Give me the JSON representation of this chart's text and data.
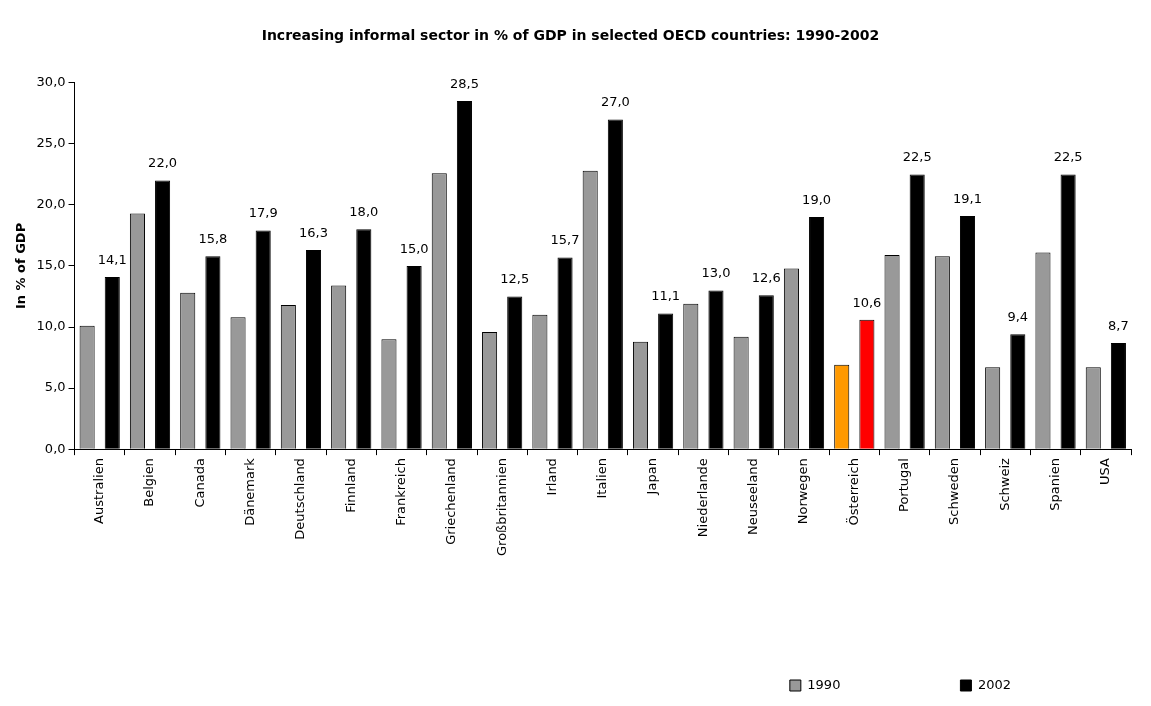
{
  "chart_data": {
    "type": "bar",
    "title": "Increasing informal sector in % of GDP in selected OECD countries: 1990-2002",
    "ylabel": "In % of GDP",
    "categories": [
      "Australien",
      "Belgien",
      "Canada",
      "Dänemark",
      "Deutschland",
      "Finnland",
      "Frankreich",
      "Griechenland",
      "Großbritannien",
      "Irland",
      "Italien",
      "Japan",
      "Niederlande",
      "Neuseeland",
      "Norwegen",
      "Österreich",
      "Portugal",
      "Schweden",
      "Schweiz",
      "Spanien",
      "USA"
    ],
    "series": [
      {
        "name": "1990",
        "color": "#999999",
        "colors": [
          "#999999",
          "#999999",
          "#999999",
          "#999999",
          "#999999",
          "#999999",
          "#999999",
          "#999999",
          "#999999",
          "#999999",
          "#999999",
          "#999999",
          "#999999",
          "#999999",
          "#999999",
          "#ff9900",
          "#999999",
          "#999999",
          "#999999",
          "#999999",
          "#999999"
        ],
        "values": [
          10.1,
          19.3,
          12.8,
          10.8,
          11.8,
          13.4,
          9.0,
          22.6,
          9.6,
          11.0,
          22.8,
          8.8,
          11.9,
          9.2,
          14.8,
          6.9,
          15.9,
          15.8,
          6.7,
          16.1,
          6.7
        ]
      },
      {
        "name": "2002",
        "color": "#000000",
        "colors": [
          "#000000",
          "#000000",
          "#000000",
          "#000000",
          "#000000",
          "#000000",
          "#000000",
          "#000000",
          "#000000",
          "#000000",
          "#000000",
          "#000000",
          "#000000",
          "#000000",
          "#000000",
          "#ff0000",
          "#000000",
          "#000000",
          "#000000",
          "#000000",
          "#000000"
        ],
        "values": [
          14.1,
          22.0,
          15.8,
          17.9,
          16.3,
          18.0,
          15.0,
          28.5,
          12.5,
          15.7,
          27.0,
          11.1,
          13.0,
          12.6,
          19.0,
          10.6,
          22.5,
          19.1,
          9.4,
          22.5,
          8.7
        ],
        "value_labels": [
          "14,1",
          "22,0",
          "15,8",
          "17,9",
          "16,3",
          "18,0",
          "15,0",
          "28,5",
          "12,5",
          "15,7",
          "27,0",
          "11,1",
          "13,0",
          "12,6",
          "19,0",
          "10,6",
          "22,5",
          "19,1",
          "9,4",
          "22,5",
          "8,7"
        ]
      }
    ],
    "ylim": [
      0,
      30
    ],
    "yticks": [
      {
        "value": 0,
        "label": "0,0"
      },
      {
        "value": 5,
        "label": "5,0"
      },
      {
        "value": 10,
        "label": "10,0"
      },
      {
        "value": 15,
        "label": "15,0"
      },
      {
        "value": 20,
        "label": "20,0"
      },
      {
        "value": 25,
        "label": "25,0"
      },
      {
        "value": 30,
        "label": "30,0"
      }
    ],
    "grid": false,
    "legend": "bottom right"
  }
}
